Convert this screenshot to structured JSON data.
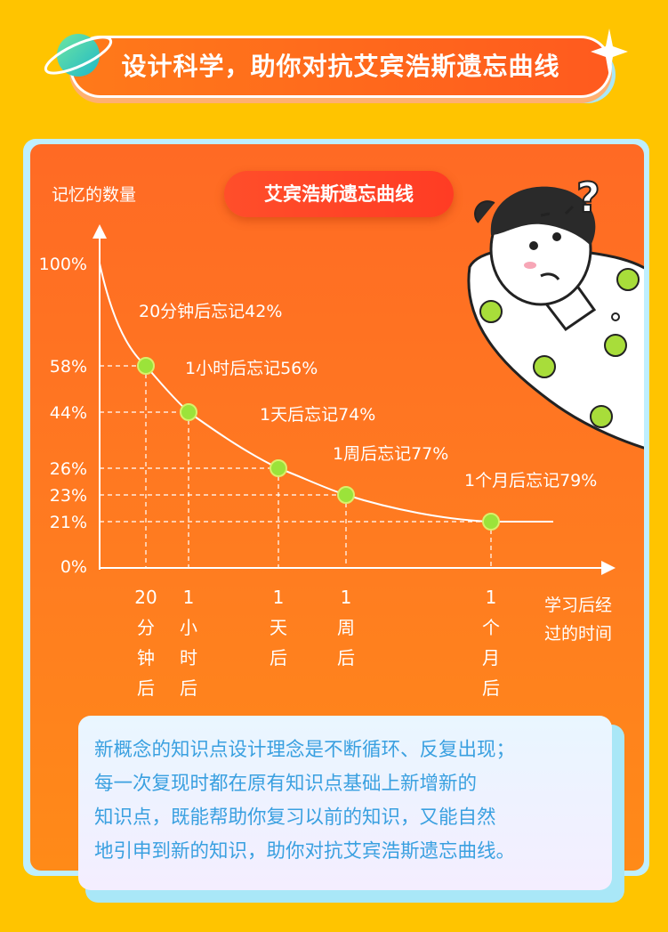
{
  "header": {
    "title": "设计科学，助你对抗艾宾浩斯遗忘曲线"
  },
  "chart_data": {
    "type": "line",
    "title": "艾宾浩斯遗忘曲线",
    "ylabel": "记忆的数量",
    "xlabel": "学习后经过的时间",
    "ylim": [
      0,
      100
    ],
    "yticks": [
      "100%",
      "58%",
      "44%",
      "26%",
      "23%",
      "21%",
      "0%"
    ],
    "points": [
      {
        "x_label": "20分钟后",
        "x_lines": [
          "20",
          "分",
          "钟",
          "后"
        ],
        "y": 58,
        "annotation": "20分钟后忘记42%"
      },
      {
        "x_label": "1小时后",
        "x_lines": [
          "1",
          "小",
          "时",
          "后"
        ],
        "y": 44,
        "annotation": "1小时后忘记56%"
      },
      {
        "x_label": "1天后",
        "x_lines": [
          "1",
          "天",
          "后"
        ],
        "y": 26,
        "annotation": "1天后忘记74%"
      },
      {
        "x_label": "1周后",
        "x_lines": [
          "1",
          "周",
          "后"
        ],
        "y": 23,
        "annotation": "1周后忘记77%"
      },
      {
        "x_label": "1个月后",
        "x_lines": [
          "1",
          "个",
          "月",
          "后"
        ],
        "y": 21,
        "annotation": "1个月后忘记79%"
      }
    ],
    "xlabel_lines": [
      "学习后经",
      "过的时间"
    ]
  },
  "description": {
    "lines": [
      "新概念的知识点设计理念是不断循环、反复出现；",
      "每一次复现时都在原有知识点基础上新增新的",
      "知识点，既能帮助你复习以前的知识，又能自然",
      "地引申到新的知识，助你对抗艾宾浩斯遗忘曲线。"
    ]
  },
  "colors": {
    "background": "#FFC400",
    "card": "#FF7020",
    "point": "#9BE33A",
    "text_blue": "#3AA0E0"
  }
}
